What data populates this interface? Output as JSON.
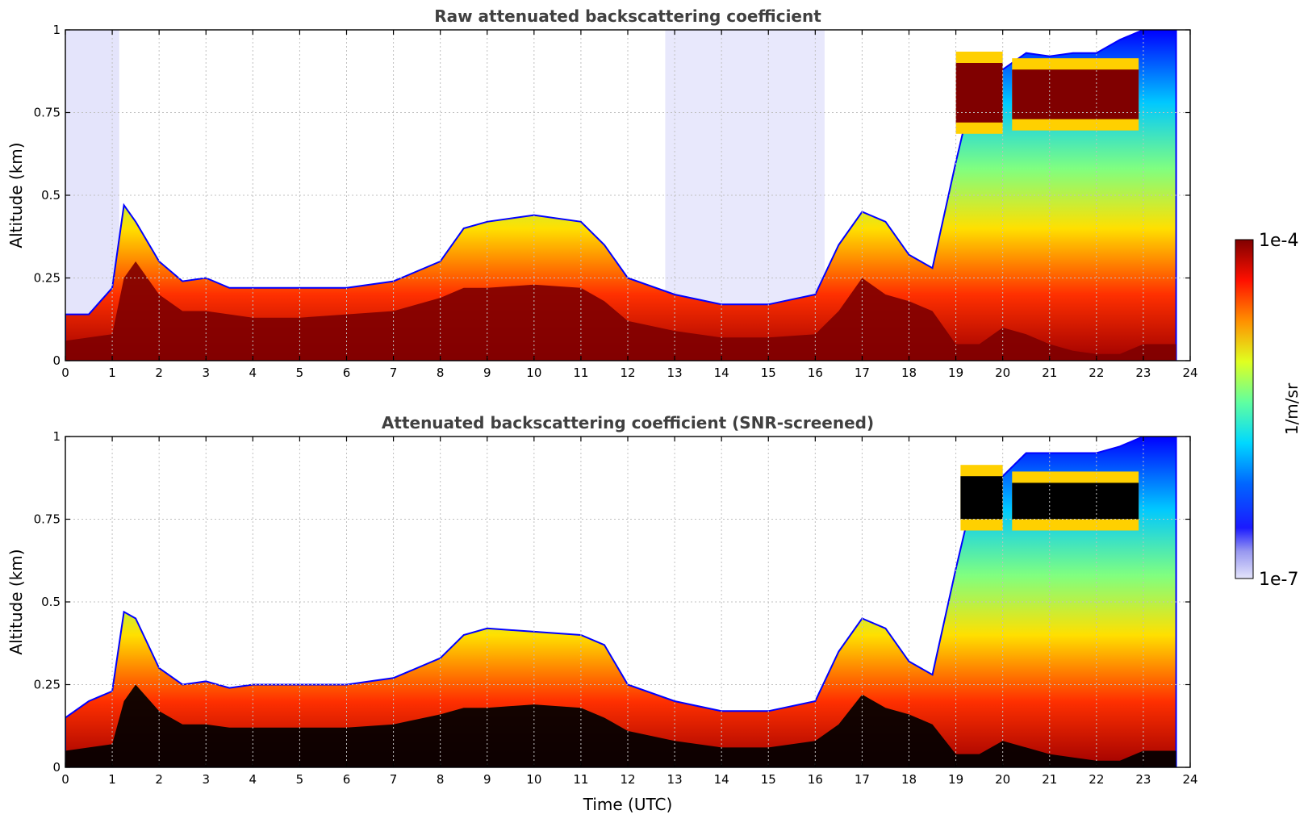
{
  "chart_data": [
    {
      "type": "heatmap",
      "title": "Raw attenuated backscattering coefficient",
      "xlabel": "",
      "ylabel": "Altitude (km)",
      "xlim": [
        0,
        24
      ],
      "ylim": [
        0,
        1
      ],
      "x_ticks": [
        "0",
        "1",
        "2",
        "3",
        "4",
        "5",
        "6",
        "7",
        "8",
        "9",
        "10",
        "11",
        "12",
        "13",
        "14",
        "15",
        "16",
        "17",
        "18",
        "19",
        "20",
        "21",
        "22",
        "23",
        "24"
      ],
      "y_ticks": [
        "0",
        "0.25",
        "0.5",
        "0.75",
        "1"
      ],
      "grid": true,
      "x": [
        0,
        0.5,
        1,
        1.25,
        1.5,
        2,
        2.5,
        3,
        3.5,
        4,
        5,
        6,
        7,
        8,
        8.5,
        9,
        10,
        11,
        11.5,
        12,
        13,
        14,
        15,
        16,
        16.5,
        17,
        17.5,
        18,
        18.5,
        19,
        19.5,
        20,
        20.5,
        21,
        21.5,
        22,
        22.5,
        23,
        23.5,
        23.7
      ],
      "layer_top_km": [
        0.14,
        0.14,
        0.22,
        0.47,
        0.42,
        0.3,
        0.24,
        0.25,
        0.22,
        0.22,
        0.22,
        0.22,
        0.24,
        0.3,
        0.4,
        0.42,
        0.44,
        0.42,
        0.35,
        0.25,
        0.2,
        0.17,
        0.17,
        0.2,
        0.35,
        0.45,
        0.42,
        0.32,
        0.28,
        0.6,
        0.9,
        0.88,
        0.93,
        0.92,
        0.93,
        0.93,
        0.97,
        1.0,
        1.0,
        1.0
      ],
      "saturated_top_km": [
        0.06,
        0.07,
        0.08,
        0.25,
        0.3,
        0.2,
        0.15,
        0.15,
        0.14,
        0.13,
        0.13,
        0.14,
        0.15,
        0.19,
        0.22,
        0.22,
        0.23,
        0.22,
        0.18,
        0.12,
        0.09,
        0.07,
        0.07,
        0.08,
        0.15,
        0.25,
        0.2,
        0.18,
        0.15,
        0.05,
        0.05,
        0.1,
        0.08,
        0.05,
        0.03,
        0.02,
        0.02,
        0.05,
        0.05,
        0.05
      ],
      "upper_cloud_km": [
        [
          19.0,
          20.0,
          0.72,
          0.9
        ],
        [
          20.2,
          22.9,
          0.73,
          0.88
        ]
      ]
    },
    {
      "type": "heatmap",
      "title": "Attenuated backscattering coefficient (SNR-screened)",
      "xlabel": "Time (UTC)",
      "ylabel": "Altitude (km)",
      "xlim": [
        0,
        24
      ],
      "ylim": [
        0,
        1
      ],
      "x_ticks": [
        "0",
        "1",
        "2",
        "3",
        "4",
        "5",
        "6",
        "7",
        "8",
        "9",
        "10",
        "11",
        "12",
        "13",
        "14",
        "15",
        "16",
        "17",
        "18",
        "19",
        "20",
        "21",
        "22",
        "23",
        "24"
      ],
      "y_ticks": [
        "0",
        "0.25",
        "0.5",
        "0.75",
        "1"
      ],
      "grid": true,
      "x": [
        0,
        0.5,
        1,
        1.25,
        1.5,
        2,
        2.5,
        3,
        3.5,
        4,
        5,
        6,
        7,
        8,
        8.5,
        9,
        10,
        11,
        11.5,
        12,
        13,
        14,
        15,
        16,
        16.5,
        17,
        17.5,
        18,
        18.5,
        19,
        19.5,
        20,
        20.5,
        21,
        21.5,
        22,
        22.5,
        23,
        23.5,
        23.7
      ],
      "layer_top_km": [
        0.15,
        0.2,
        0.23,
        0.47,
        0.45,
        0.3,
        0.25,
        0.26,
        0.24,
        0.25,
        0.25,
        0.25,
        0.27,
        0.33,
        0.4,
        0.42,
        0.41,
        0.4,
        0.37,
        0.25,
        0.2,
        0.17,
        0.17,
        0.2,
        0.35,
        0.45,
        0.42,
        0.32,
        0.28,
        0.6,
        0.9,
        0.88,
        0.95,
        0.95,
        0.95,
        0.95,
        0.97,
        1.0,
        1.0,
        1.0
      ],
      "saturated_top_km": [
        0.05,
        0.06,
        0.07,
        0.2,
        0.25,
        0.17,
        0.13,
        0.13,
        0.12,
        0.12,
        0.12,
        0.12,
        0.13,
        0.16,
        0.18,
        0.18,
        0.19,
        0.18,
        0.15,
        0.11,
        0.08,
        0.06,
        0.06,
        0.08,
        0.13,
        0.22,
        0.18,
        0.16,
        0.13,
        0.04,
        0.04,
        0.08,
        0.06,
        0.04,
        0.03,
        0.02,
        0.02,
        0.05,
        0.05,
        0.05
      ],
      "upper_cloud_km": [
        [
          19.1,
          20.0,
          0.75,
          0.88
        ],
        [
          20.2,
          22.9,
          0.75,
          0.86
        ]
      ]
    }
  ],
  "colorbar": {
    "max_label": "1e-4",
    "min_label": "1e-7",
    "unit_label": "1/m/sr",
    "colormap": "jet",
    "scale": "log",
    "range": [
      1e-07,
      0.0001
    ],
    "low_color": "#e4e4fb"
  },
  "colors": {
    "title": "#404040",
    "grid": "#c0c0c0",
    "saturated_screened": "#000000",
    "saturated_raw": "#800000"
  }
}
